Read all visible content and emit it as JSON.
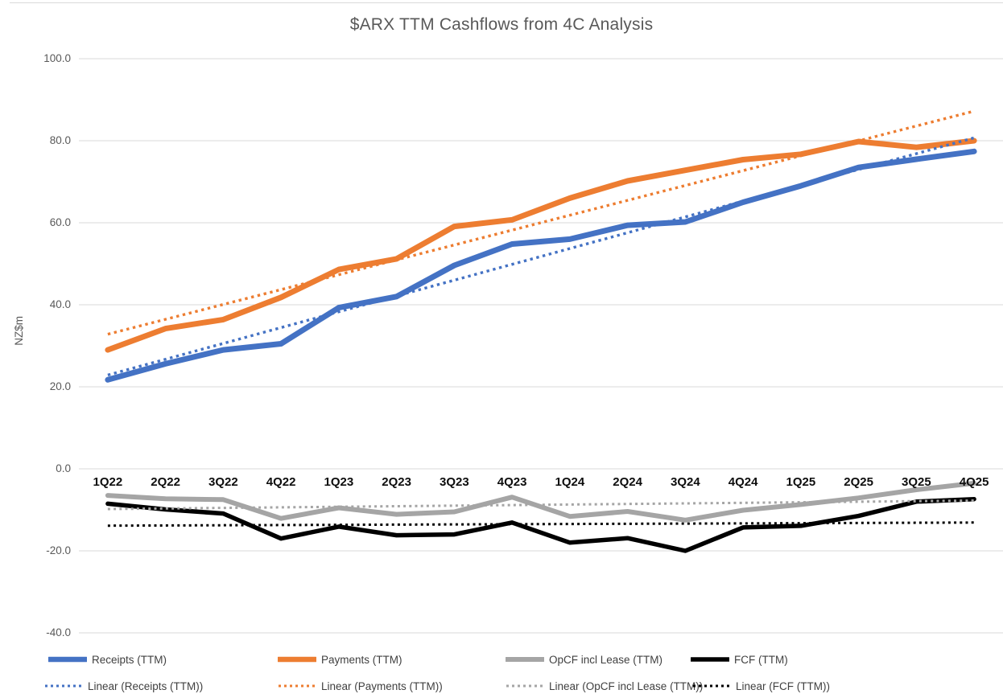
{
  "chart": {
    "title": "$ARX TTM Cashflows from 4C Analysis"
  },
  "chart_data": {
    "type": "line",
    "title": "$ARX TTM Cashflows from 4C Analysis",
    "xlabel": "",
    "ylabel": "NZ$m",
    "ylim": [
      -40,
      100
    ],
    "ytick_interval": 20,
    "ytick_labels": [
      "100.0",
      "80.0",
      "60.0",
      "40.0",
      "20.0",
      "0.0",
      "-20.0",
      "-40.0"
    ],
    "ytick_values": [
      100,
      80,
      60,
      40,
      20,
      0,
      -20,
      -40
    ],
    "grid": true,
    "legend_position": "bottom",
    "categories": [
      "1Q22",
      "2Q22",
      "3Q22",
      "4Q22",
      "1Q23",
      "2Q23",
      "3Q23",
      "4Q23",
      "1Q24",
      "2Q24",
      "3Q24",
      "4Q24",
      "1Q25",
      "2Q25",
      "3Q25",
      "4Q25"
    ],
    "series": [
      {
        "name": "Receipts (TTM)",
        "color": "#4472C4",
        "style": "solid",
        "stroke_width": 7,
        "values": [
          21.7,
          25.6,
          29.0,
          30.5,
          39.3,
          42.0,
          49.6,
          54.8,
          56.0,
          59.4,
          60.2,
          65.0,
          69.0,
          73.5,
          75.5,
          77.4
        ]
      },
      {
        "name": "Payments (TTM)",
        "color": "#ED7D31",
        "style": "solid",
        "stroke_width": 7,
        "values": [
          29.0,
          34.2,
          36.4,
          41.8,
          48.6,
          51.2,
          59.1,
          60.7,
          66.0,
          70.2,
          72.8,
          75.4,
          76.7,
          79.8,
          78.4,
          80.0
        ]
      },
      {
        "name": "OpCF incl Lease (TTM)",
        "color": "#A5A5A5",
        "style": "solid",
        "stroke_width": 6,
        "values": [
          -6.5,
          -7.3,
          -7.5,
          -12.1,
          -9.5,
          -11.1,
          -10.5,
          -6.9,
          -11.6,
          -10.4,
          -12.5,
          -10.1,
          -8.7,
          -7.1,
          -5.1,
          -3.5
        ]
      },
      {
        "name": "FCF (TTM)",
        "color": "#000000",
        "style": "solid",
        "stroke_width": 5.5,
        "values": [
          -8.5,
          -9.9,
          -10.9,
          -17.0,
          -14.1,
          -16.2,
          -16.0,
          -13.1,
          -18.0,
          -16.9,
          -20.0,
          -14.3,
          -13.9,
          -11.5,
          -8.0,
          -7.4
        ]
      }
    ],
    "trendlines": [
      {
        "name": "Linear (Receipts (TTM))",
        "series": "Receipts (TTM)",
        "color": "#4472C4",
        "style": "dotted"
      },
      {
        "name": "Linear (Payments (TTM))",
        "series": "Payments (TTM)",
        "color": "#ED7D31",
        "style": "dotted"
      },
      {
        "name": "Linear (OpCF incl Lease (TTM))",
        "series": "OpCF incl Lease (TTM)",
        "color": "#A5A5A5",
        "style": "dotted"
      },
      {
        "name": "Linear (FCF (TTM))",
        "series": "FCF (TTM)",
        "color": "#000000",
        "style": "dotted"
      }
    ]
  }
}
